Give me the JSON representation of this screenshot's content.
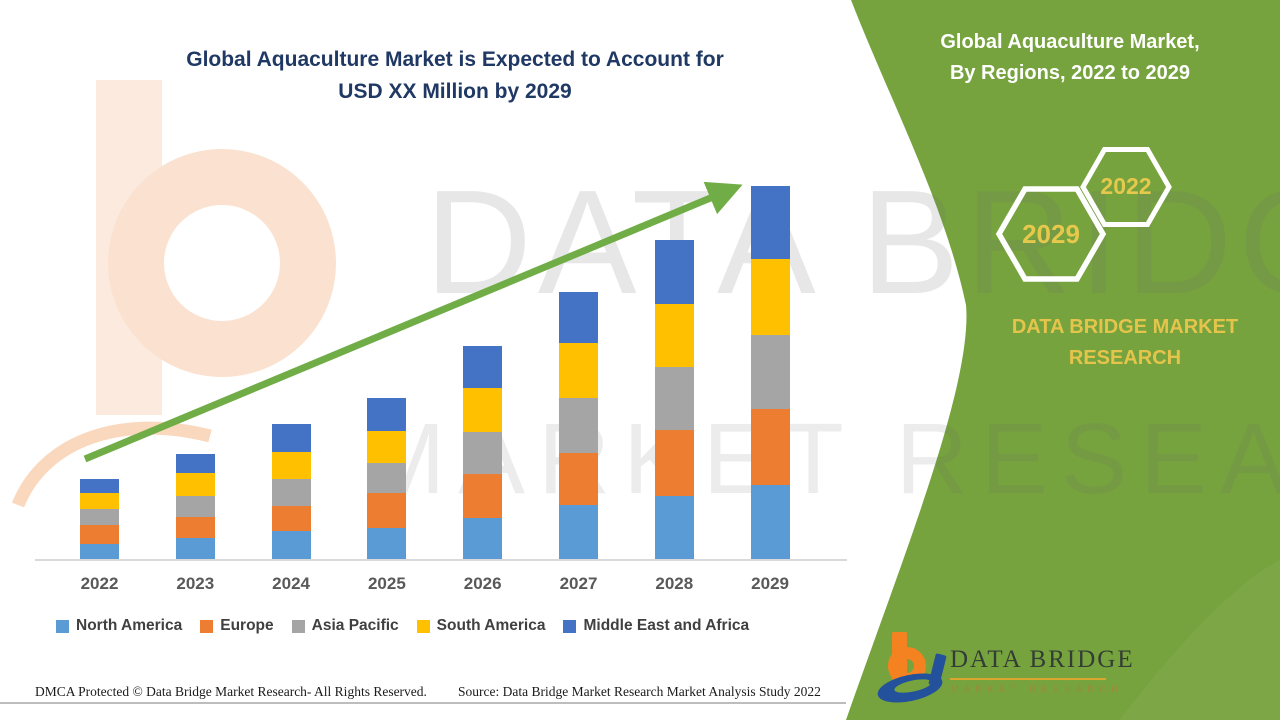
{
  "title": {
    "line1": "Global Aquaculture Market is Expected to Account for",
    "line2": "USD XX Million by 2029"
  },
  "side_panel": {
    "heading_line1": "Global Aquaculture Market,",
    "heading_line2": "By Regions, 2022 to 2029",
    "hexagon_front": "2029",
    "hexagon_back": "2022",
    "brand_line1": "DATA BRIDGE MARKET",
    "brand_line2": "RESEARCH",
    "logo_name": "DATA BRIDGE",
    "logo_tagline": "MARKET RESEARCH",
    "panel_color": "#76A33D",
    "accent_gold": "#E5C44C"
  },
  "watermark": {
    "line1": "DATA BRIDGE",
    "line2": "MARKET RESEARCH"
  },
  "footer": {
    "left": "DMCA Protected © Data Bridge Market Research- All Rights Reserved.",
    "right": "Source: Data Bridge Market Research Market Analysis Study 2022"
  },
  "chart_data": {
    "type": "bar",
    "stacked": true,
    "title": "Global Aquaculture Market is Expected to Account for USD XX Million by 2029",
    "xlabel": "",
    "ylabel": "",
    "units": "relative units (no value axis shown; values estimated from bar heights)",
    "grid": false,
    "legend_position": "bottom",
    "trend_arrow": true,
    "arrow_color": "#70AD47",
    "categories": [
      "2022",
      "2023",
      "2024",
      "2025",
      "2026",
      "2027",
      "2028",
      "2029"
    ],
    "series": [
      {
        "name": "North America",
        "color": "#5B9BD5",
        "values": [
          16,
          22,
          29,
          32,
          42,
          55,
          64,
          75
        ]
      },
      {
        "name": "Europe",
        "color": "#ED7D31",
        "values": [
          19,
          21,
          25,
          35,
          44,
          52,
          66,
          76
        ]
      },
      {
        "name": "Asia Pacific",
        "color": "#A5A5A5",
        "values": [
          16,
          21,
          27,
          30,
          42,
          55,
          63,
          74
        ]
      },
      {
        "name": "South America",
        "color": "#FFC000",
        "values": [
          16,
          23,
          27,
          32,
          44,
          55,
          63,
          76
        ]
      },
      {
        "name": "Middle East and Africa",
        "color": "#4472C4",
        "values": [
          14,
          19,
          28,
          33,
          42,
          51,
          64,
          73
        ]
      }
    ],
    "totals": [
      81,
      106,
      136,
      162,
      214,
      268,
      320,
      374
    ]
  }
}
